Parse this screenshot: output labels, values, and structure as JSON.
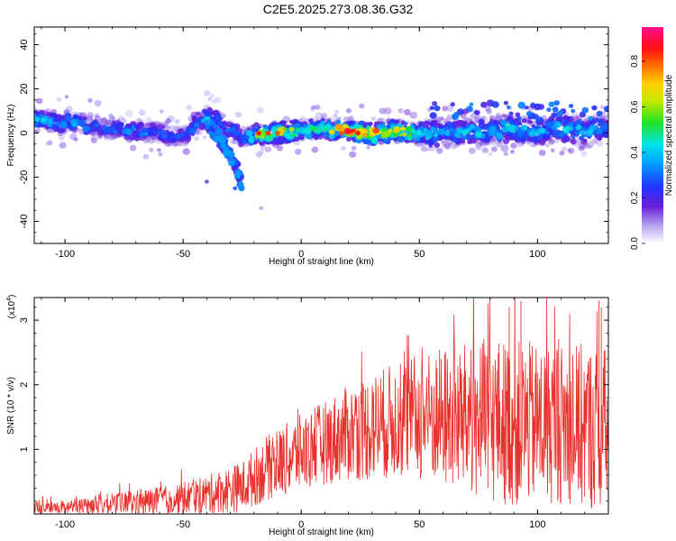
{
  "title": "C2E5.2025.273.08.36.G32",
  "colors": {
    "snr_line": "#e8312c",
    "axis": "#000000",
    "background": "#ffffff"
  },
  "chart_data": [
    {
      "type": "heatmap",
      "name": "spectrogram",
      "xlabel": "Height of straight line (km)",
      "ylabel": "Frequency (Hz)",
      "xlim": [
        -113,
        130
      ],
      "ylim": [
        -50,
        48
      ],
      "xticks": [
        -100,
        -50,
        0,
        50,
        100
      ],
      "yticks": [
        -40,
        -20,
        0,
        20,
        40
      ],
      "ytick_labels": [
        "-40",
        "-20",
        "0",
        "20",
        "40"
      ],
      "xtick_labels": [
        "-100",
        "-50",
        "0",
        "50",
        "100"
      ],
      "colorbar": {
        "label": "Normalized spectral amplitude",
        "range": [
          0.0,
          0.95
        ],
        "ticks": [
          0.0,
          0.2,
          0.4,
          0.6,
          0.8
        ],
        "tick_labels": [
          "0.0",
          "0.2",
          "0.4",
          "0.6",
          "0.8"
        ],
        "colormap": "rainbow (white → violet → blue → cyan → green → yellow → red → magenta)"
      },
      "ridge": {
        "description": "main spectral ridge, frequency (Hz) vs height (km)",
        "x": [
          -113,
          -100,
          -90,
          -80,
          -70,
          -60,
          -50,
          -45,
          -40,
          -35,
          -30,
          -25,
          -20,
          -10,
          0,
          10,
          20,
          30,
          40,
          50,
          60,
          70,
          80,
          90,
          100,
          110,
          120,
          130
        ],
        "y": [
          6,
          5,
          3,
          2,
          1,
          0,
          -2,
          4,
          8,
          5,
          1,
          -1,
          -1,
          0,
          1,
          2,
          1,
          0,
          1,
          -1,
          0,
          1,
          1,
          2,
          1,
          2,
          1,
          2
        ],
        "amplitude": [
          0.45,
          0.4,
          0.3,
          0.3,
          0.35,
          0.3,
          0.3,
          0.35,
          0.4,
          0.35,
          0.3,
          0.35,
          0.6,
          0.75,
          0.5,
          0.55,
          0.85,
          0.8,
          0.7,
          0.5,
          0.4,
          0.45,
          0.4,
          0.45,
          0.4,
          0.45,
          0.4,
          0.35
        ]
      },
      "branch": {
        "description": "secondary descending branch",
        "x": [
          -40,
          -35,
          -30,
          -27,
          -25
        ],
        "y": [
          5,
          -2,
          -10,
          -17,
          -24
        ]
      }
    },
    {
      "type": "line",
      "name": "snr",
      "xlabel": "Height of straight line (km)",
      "ylabel": "SNR (10 * v/v)",
      "y_multiplier": "(x10",
      "y_multiplier_exp": "4",
      "y_multiplier_close": ")",
      "xlim": [
        -113,
        130
      ],
      "ylim": [
        0,
        3.35
      ],
      "xticks": [
        -100,
        -50,
        0,
        50,
        100
      ],
      "xtick_labels": [
        "-100",
        "-50",
        "0",
        "50",
        "100"
      ],
      "yticks": [
        1,
        2,
        3
      ],
      "ytick_labels": [
        "1",
        "2",
        "3"
      ],
      "envelope": {
        "x": [
          -113,
          -100,
          -80,
          -60,
          -40,
          -25,
          -15,
          0,
          10,
          20,
          30,
          40,
          50,
          60,
          70,
          80,
          90,
          100,
          110,
          120,
          130
        ],
        "mean": [
          0.08,
          0.1,
          0.15,
          0.2,
          0.3,
          0.42,
          0.7,
          0.95,
          1.1,
          1.25,
          1.35,
          1.45,
          1.5,
          1.5,
          1.45,
          1.45,
          1.4,
          1.4,
          1.4,
          1.35,
          1.3
        ],
        "spread": [
          0.12,
          0.12,
          0.18,
          0.22,
          0.3,
          0.4,
          0.5,
          0.6,
          0.65,
          0.75,
          0.85,
          0.9,
          1.0,
          1.1,
          1.2,
          1.3,
          1.3,
          1.25,
          1.25,
          1.3,
          1.3
        ]
      },
      "peaks": {
        "x": [
          79,
          88,
          93,
          126,
          127
        ],
        "y": [
          3.25,
          3.2,
          3.3,
          3.3,
          3.2
        ]
      }
    }
  ]
}
